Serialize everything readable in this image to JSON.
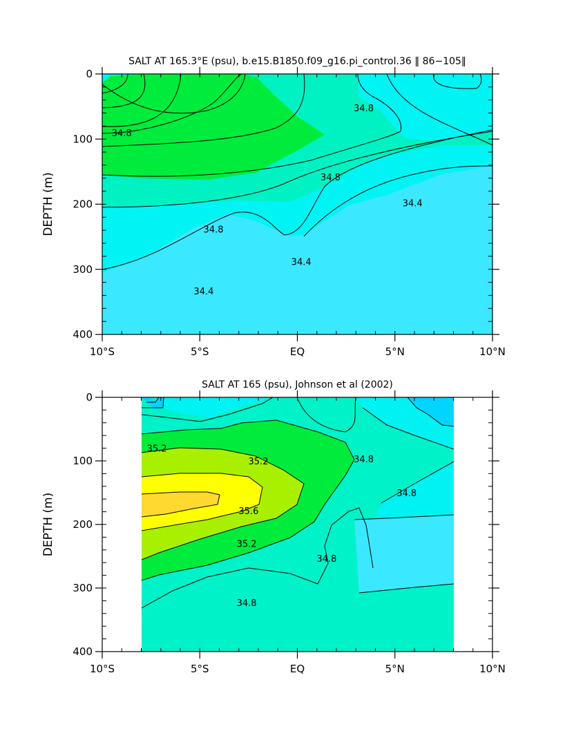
{
  "chart_data": [
    {
      "type": "contour",
      "title": "SALT AT 165.3°E (psu), b.e15.B1850.f09_g16.pi_control.36 ‖ 86−105‖",
      "xlabel": "",
      "ylabel": "DEPTH (m)",
      "xlim": [
        -10,
        10
      ],
      "ylim": [
        0,
        400
      ],
      "y_inverted": true,
      "data_x_range": [
        -10,
        10
      ],
      "x_tick_values": [
        -10,
        -5,
        0,
        5,
        10
      ],
      "x_tick_labels": [
        "10°S",
        "5°S",
        "EQ",
        "5°N",
        "10°N"
      ],
      "y_tick_values": [
        0,
        100,
        200,
        300,
        400
      ],
      "y_tick_labels": [
        "0",
        "100",
        "200",
        "300",
        "400"
      ],
      "units": "psu",
      "contour_interval": 0.2,
      "colors": {
        "lt_34.2": "#3ae8ff",
        "34.2_34.6": "#00f4f4",
        "34.6_35.0": "#00f2c2",
        "35.0_35.4": "#00ec3c"
      },
      "contour_labels": [
        {
          "text": "34.8",
          "x": -9.0,
          "depth": 90
        },
        {
          "text": "34.8",
          "x": 3.4,
          "depth": 52
        },
        {
          "text": "34.8",
          "x": 1.7,
          "depth": 158
        },
        {
          "text": "34.8",
          "x": -4.3,
          "depth": 238
        },
        {
          "text": "34.4",
          "x": 5.9,
          "depth": 198
        },
        {
          "text": "34.4",
          "x": 0.2,
          "depth": 288
        },
        {
          "text": "34.4",
          "x": -4.8,
          "depth": 333
        }
      ]
    },
    {
      "type": "contour",
      "title": "SALT AT 165 (psu), Johnson et al (2002)",
      "xlabel": "",
      "ylabel": "DEPTH (m)",
      "xlim": [
        -10,
        10
      ],
      "ylim": [
        0,
        400
      ],
      "y_inverted": true,
      "data_x_range": [
        -8,
        8
      ],
      "x_tick_values": [
        -10,
        -5,
        0,
        5,
        10
      ],
      "x_tick_labels": [
        "10°S",
        "5°S",
        "EQ",
        "5°N",
        "10°N"
      ],
      "y_tick_values": [
        0,
        100,
        200,
        300,
        400
      ],
      "y_tick_labels": [
        "0",
        "100",
        "200",
        "300",
        "400"
      ],
      "units": "psu",
      "contour_interval": 0.2,
      "colors": {
        "lt_34.2": "#00d4ff",
        "34.2_34.6": "#00f2f2",
        "34.6_35.0": "#00f2c8",
        "35.0_35.4": "#00ec3c",
        "35.4_35.6": "#a8f000",
        "35.6_35.8": "#ffff00",
        "gt_35.8": "#ffd830"
      },
      "contour_labels": [
        {
          "text": "35.2",
          "x": -7.2,
          "depth": 80
        },
        {
          "text": "35.2",
          "x": -2.0,
          "depth": 100
        },
        {
          "text": "35.6",
          "x": -2.5,
          "depth": 178
        },
        {
          "text": "35.2",
          "x": -2.6,
          "depth": 230
        },
        {
          "text": "34.8",
          "x": 3.4,
          "depth": 97
        },
        {
          "text": "34.8",
          "x": 5.6,
          "depth": 150
        },
        {
          "text": "34.8",
          "x": 1.5,
          "depth": 253
        },
        {
          "text": "34.8",
          "x": -2.6,
          "depth": 323
        }
      ]
    }
  ]
}
